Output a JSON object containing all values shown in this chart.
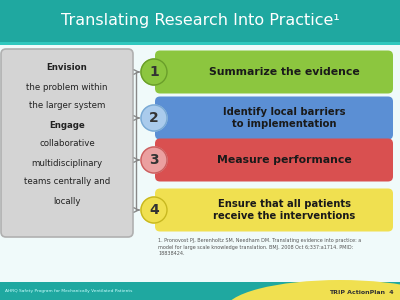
{
  "title": "Translating Research Into Practice¹",
  "header_bg": "#1fa8a0",
  "slide_bg": "#ffffff",
  "left_box_bg": "#d4d4d4",
  "left_box_edge": "#b0b0b0",
  "left_texts": [
    {
      "text": "Envision",
      "bold": true
    },
    {
      "text": "the problem within",
      "bold": false
    },
    {
      "text": "the larger system",
      "bold": false
    },
    {
      "text": "Engage",
      "bold": true
    },
    {
      "text": "collaborative",
      "bold": false
    },
    {
      "text": "multidisciplinary",
      "bold": false
    },
    {
      "text": "teams centrally and",
      "bold": false
    },
    {
      "text": "locally",
      "bold": false
    }
  ],
  "steps": [
    {
      "number": "1",
      "text": "Summarize the evidence",
      "bar_color": "#8cc63f",
      "circle_color": "#8cc63f",
      "circle_border": "#6a9e2a",
      "text_color": "#1a1a1a",
      "multiline": false
    },
    {
      "number": "2",
      "text": "Identify local barriers\nto implementation",
      "bar_color": "#5b8fd4",
      "circle_color": "#aacbec",
      "circle_border": "#7aaad4",
      "text_color": "#1a1a1a",
      "multiline": true
    },
    {
      "number": "3",
      "text": "Measure performance",
      "bar_color": "#d95050",
      "circle_color": "#eba0a0",
      "circle_border": "#cc6060",
      "text_color": "#1a1a1a",
      "multiline": false
    },
    {
      "number": "4",
      "text": "Ensure that all patients\nreceive the interventions",
      "bar_color": "#f0e050",
      "circle_color": "#f0e050",
      "circle_border": "#c8b820",
      "text_color": "#1a1a1a",
      "multiline": true
    }
  ],
  "footnote": "1. Pronovost PJ, Berenholtz SM, Needham DM. Translating evidence into practice: a\nmodel for large scale knowledge translation. BMJ. 2008 Oct 6;337:a1714. PMID:\n18838424.",
  "bottom_left": "AHRQ Safety Program for Mechanically Ventilated Patients",
  "bottom_right": "TRIP ActionPlan  4",
  "footer_yellow": "#f0e050",
  "footer_teal": "#1fa8a0"
}
